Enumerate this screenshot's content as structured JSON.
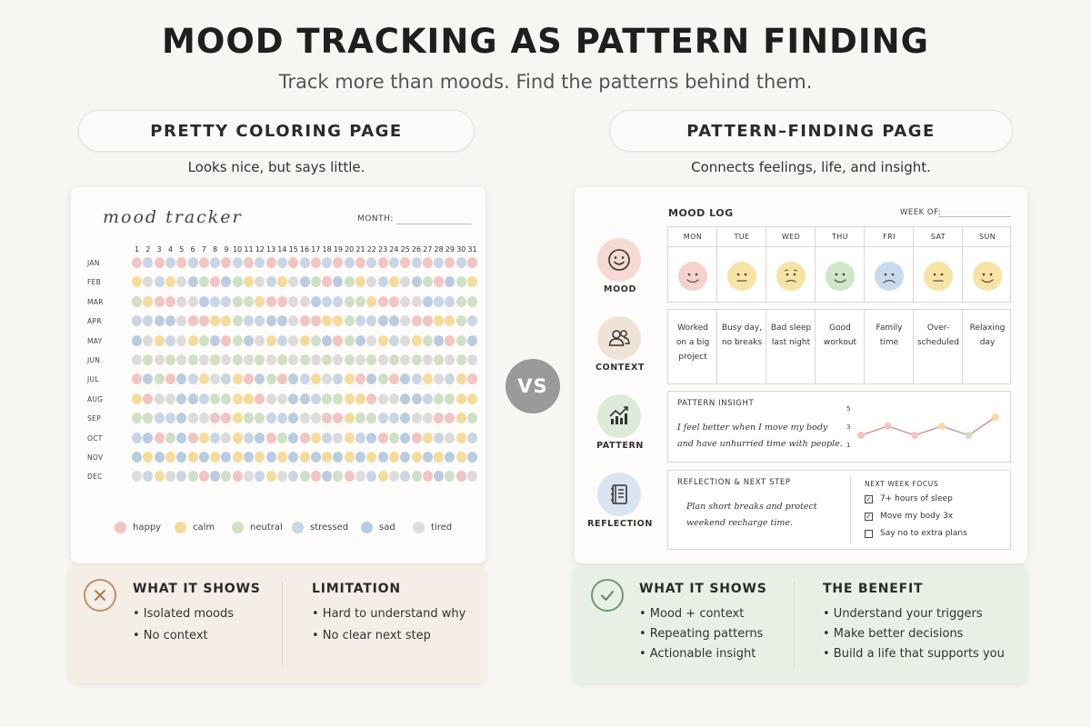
{
  "header": {
    "title": "MOOD TRACKING AS PATTERN FINDING",
    "subtitle": "Track more than moods. Find the patterns behind them."
  },
  "left": {
    "heading": "PRETTY COLORING PAGE",
    "caption": "Looks nice, but says little.",
    "tracker": {
      "title": "mood tracker",
      "month_label": "MONTH:",
      "days": [
        "1",
        "2",
        "3",
        "4",
        "5",
        "6",
        "7",
        "8",
        "9",
        "10",
        "11",
        "12",
        "13",
        "14",
        "15",
        "16",
        "17",
        "18",
        "19",
        "20",
        "21",
        "22",
        "23",
        "24",
        "25",
        "26",
        "27",
        "28",
        "29",
        "30",
        "31"
      ],
      "months": [
        "JAN",
        "FEB",
        "MAR",
        "APR",
        "MAY",
        "JUN",
        "JUL",
        "AUG",
        "SEP",
        "OCT",
        "NOV",
        "DEC"
      ],
      "legend": [
        {
          "label": "happy",
          "color": "#f2c4c4"
        },
        {
          "label": "calm",
          "color": "#f5dc9a"
        },
        {
          "label": "neutral",
          "color": "#cfe0c4"
        },
        {
          "label": "stressed",
          "color": "#c8d6e6"
        },
        {
          "label": "sad",
          "color": "#b9cde0"
        },
        {
          "label": "tired",
          "color": "#dedcda"
        }
      ]
    },
    "panel": {
      "col1_head": "WHAT IT SHOWS",
      "col1_items": [
        "• Isolated moods",
        "• No context"
      ],
      "col2_head": "LIMITATION",
      "col2_items": [
        "• Hard to understand why",
        "• No clear next step"
      ]
    }
  },
  "vs": "VS",
  "right": {
    "heading": "PATTERN–FINDING PAGE",
    "caption": "Connects feelings, life, and insight.",
    "log": {
      "title": "MOOD LOG",
      "week_label": "WEEK OF:",
      "side": [
        "MOOD",
        "CONTEXT",
        "PATTERN",
        "REFLECTION"
      ],
      "days": [
        "MON",
        "TUE",
        "WED",
        "THU",
        "FRI",
        "SAT",
        "SUN"
      ],
      "faces": [
        {
          "mood": "happy",
          "color": "#f6d2cc"
        },
        {
          "mood": "neutral",
          "color": "#f7e3a4"
        },
        {
          "mood": "worried",
          "color": "#f7e3a4"
        },
        {
          "mood": "happy",
          "color": "#cfe6c8"
        },
        {
          "mood": "sad",
          "color": "#c9daec"
        },
        {
          "mood": "neutral",
          "color": "#f7e3a4"
        },
        {
          "mood": "happy",
          "color": "#f7e3a4"
        }
      ],
      "context": [
        [
          "Worked",
          "on a big",
          "project"
        ],
        [
          "Busy day,",
          "no breaks"
        ],
        [
          "Bad sleep",
          "last night"
        ],
        [
          "Good",
          "workout"
        ],
        [
          "Family",
          "time"
        ],
        [
          "Over-",
          "scheduled"
        ],
        [
          "Relaxing",
          "day"
        ]
      ],
      "insight_head": "PATTERN INSIGHT",
      "insight_text": [
        "I feel better when I move my body",
        "and have unhurried time with people."
      ],
      "insight_chart": {
        "y_ticks": [
          "5",
          "3",
          "1"
        ],
        "values": [
          2,
          3,
          2,
          3,
          2,
          4
        ],
        "point_colors": [
          "#f2c4c4",
          "#f2c4c4",
          "#f2c4c4",
          "#f5dc9a",
          "#cfe0c4",
          "#f5dc9a"
        ]
      },
      "reflection_head": "REFLECTION & NEXT STEP",
      "reflection_text": [
        "Plan short breaks and protect",
        "weekend recharge time."
      ],
      "focus_head": "NEXT WEEK FOCUS",
      "focus_items": [
        {
          "label": "7+ hours of sleep",
          "checked": true
        },
        {
          "label": "Move my body 3x",
          "checked": true
        },
        {
          "label": "Say no to extra plans",
          "checked": false
        }
      ]
    },
    "panel": {
      "col1_head": "WHAT IT SHOWS",
      "col1_items": [
        "• Mood + context",
        "• Repeating patterns",
        "• Actionable insight"
      ],
      "col2_head": "THE BENEFIT",
      "col2_items": [
        "• Understand your triggers",
        "• Make better decisions",
        "• Build a life that supports you"
      ]
    }
  }
}
